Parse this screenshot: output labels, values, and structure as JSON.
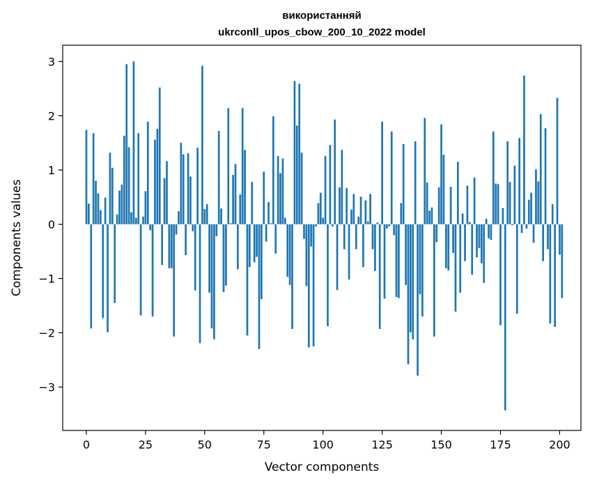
{
  "chart_data": {
    "type": "bar",
    "title_line1": "використанняй",
    "title_line2": "ukrconll_upos_cbow_200_10_2022 model",
    "xlabel": "Vector components",
    "ylabel": "Components values",
    "xlim": [
      -10,
      209
    ],
    "ylim": [
      -3.8,
      3.3
    ],
    "xticks": [
      0,
      25,
      50,
      75,
      100,
      125,
      150,
      175,
      200
    ],
    "yticks": [
      -3,
      -2,
      -1,
      0,
      1,
      2,
      3
    ],
    "ytick_labels": [
      "−3",
      "−2",
      "−1",
      "0",
      "1",
      "2",
      "3"
    ],
    "bar_color": "#1f77b4",
    "values": [
      1.74,
      0.38,
      -1.92,
      1.68,
      0.8,
      0.57,
      0.26,
      -1.73,
      0.49,
      -1.99,
      1.32,
      1.04,
      -1.45,
      0.18,
      0.62,
      0.73,
      1.63,
      2.95,
      1.42,
      0.22,
      3.0,
      0.12,
      1.68,
      -1.68,
      0.14,
      0.61,
      1.89,
      -0.11,
      -1.7,
      1.56,
      1.76,
      2.52,
      -0.75,
      0.85,
      1.16,
      -0.81,
      -0.81,
      -2.07,
      -0.19,
      0.24,
      1.5,
      1.29,
      -0.57,
      1.31,
      0.88,
      -0.13,
      -1.22,
      1.41,
      -2.19,
      2.92,
      0.28,
      0.37,
      -1.26,
      -1.92,
      -2.12,
      -0.22,
      1.72,
      0.29,
      -1.25,
      -1.13,
      2.14,
      0.02,
      0.91,
      1.11,
      -0.83,
      0.55,
      2.14,
      1.37,
      -2.05,
      -0.79,
      0.78,
      -0.7,
      -0.6,
      -2.3,
      -1.38,
      0.97,
      -0.32,
      0.41,
      0.02,
      1.99,
      -0.54,
      1.26,
      0.94,
      1.21,
      0.12,
      -0.97,
      -1.12,
      -1.93,
      2.64,
      1.82,
      2.59,
      1.32,
      -0.27,
      -1.14,
      -2.27,
      -0.41,
      -2.25,
      -0.04,
      0.39,
      0.58,
      0.12,
      1.26,
      -1.88,
      1.46,
      -0.04,
      1.93,
      -1.21,
      0.68,
      1.37,
      -0.46,
      0.67,
      -1.02,
      0.27,
      0.56,
      -0.46,
      0.14,
      0.51,
      -0.79,
      0.44,
      0.05,
      0.56,
      -0.46,
      -0.86,
      0.03,
      -1.93,
      1.89,
      -1.37,
      -0.08,
      -0.04,
      1.71,
      -0.2,
      -1.34,
      -1.36,
      0.39,
      1.48,
      -1.12,
      -2.58,
      -1.99,
      -2.12,
      1.53,
      -2.79,
      -1.29,
      -1.7,
      1.96,
      0.77,
      0.25,
      0.31,
      -2.07,
      -0.33,
      0.68,
      1.84,
      1.28,
      -0.81,
      -0.85,
      0.69,
      -0.53,
      -1.61,
      1.15,
      -1.26,
      0.2,
      -0.68,
      0.71,
      0.04,
      -0.93,
      0.86,
      -0.61,
      -0.44,
      -0.72,
      -1.08,
      0.1,
      -0.26,
      -0.29,
      1.71,
      0.75,
      0.74,
      -1.86,
      0.3,
      -3.43,
      1.53,
      0.78,
      -0.02,
      1.08,
      -1.65,
      1.59,
      -0.16,
      2.74,
      -0.08,
      0.45,
      0.58,
      -0.34,
      1.01,
      0.79,
      2.03,
      -0.68,
      1.77,
      -0.46,
      -1.83,
      0.37,
      -1.89,
      2.33,
      -0.56,
      -1.36
    ]
  }
}
